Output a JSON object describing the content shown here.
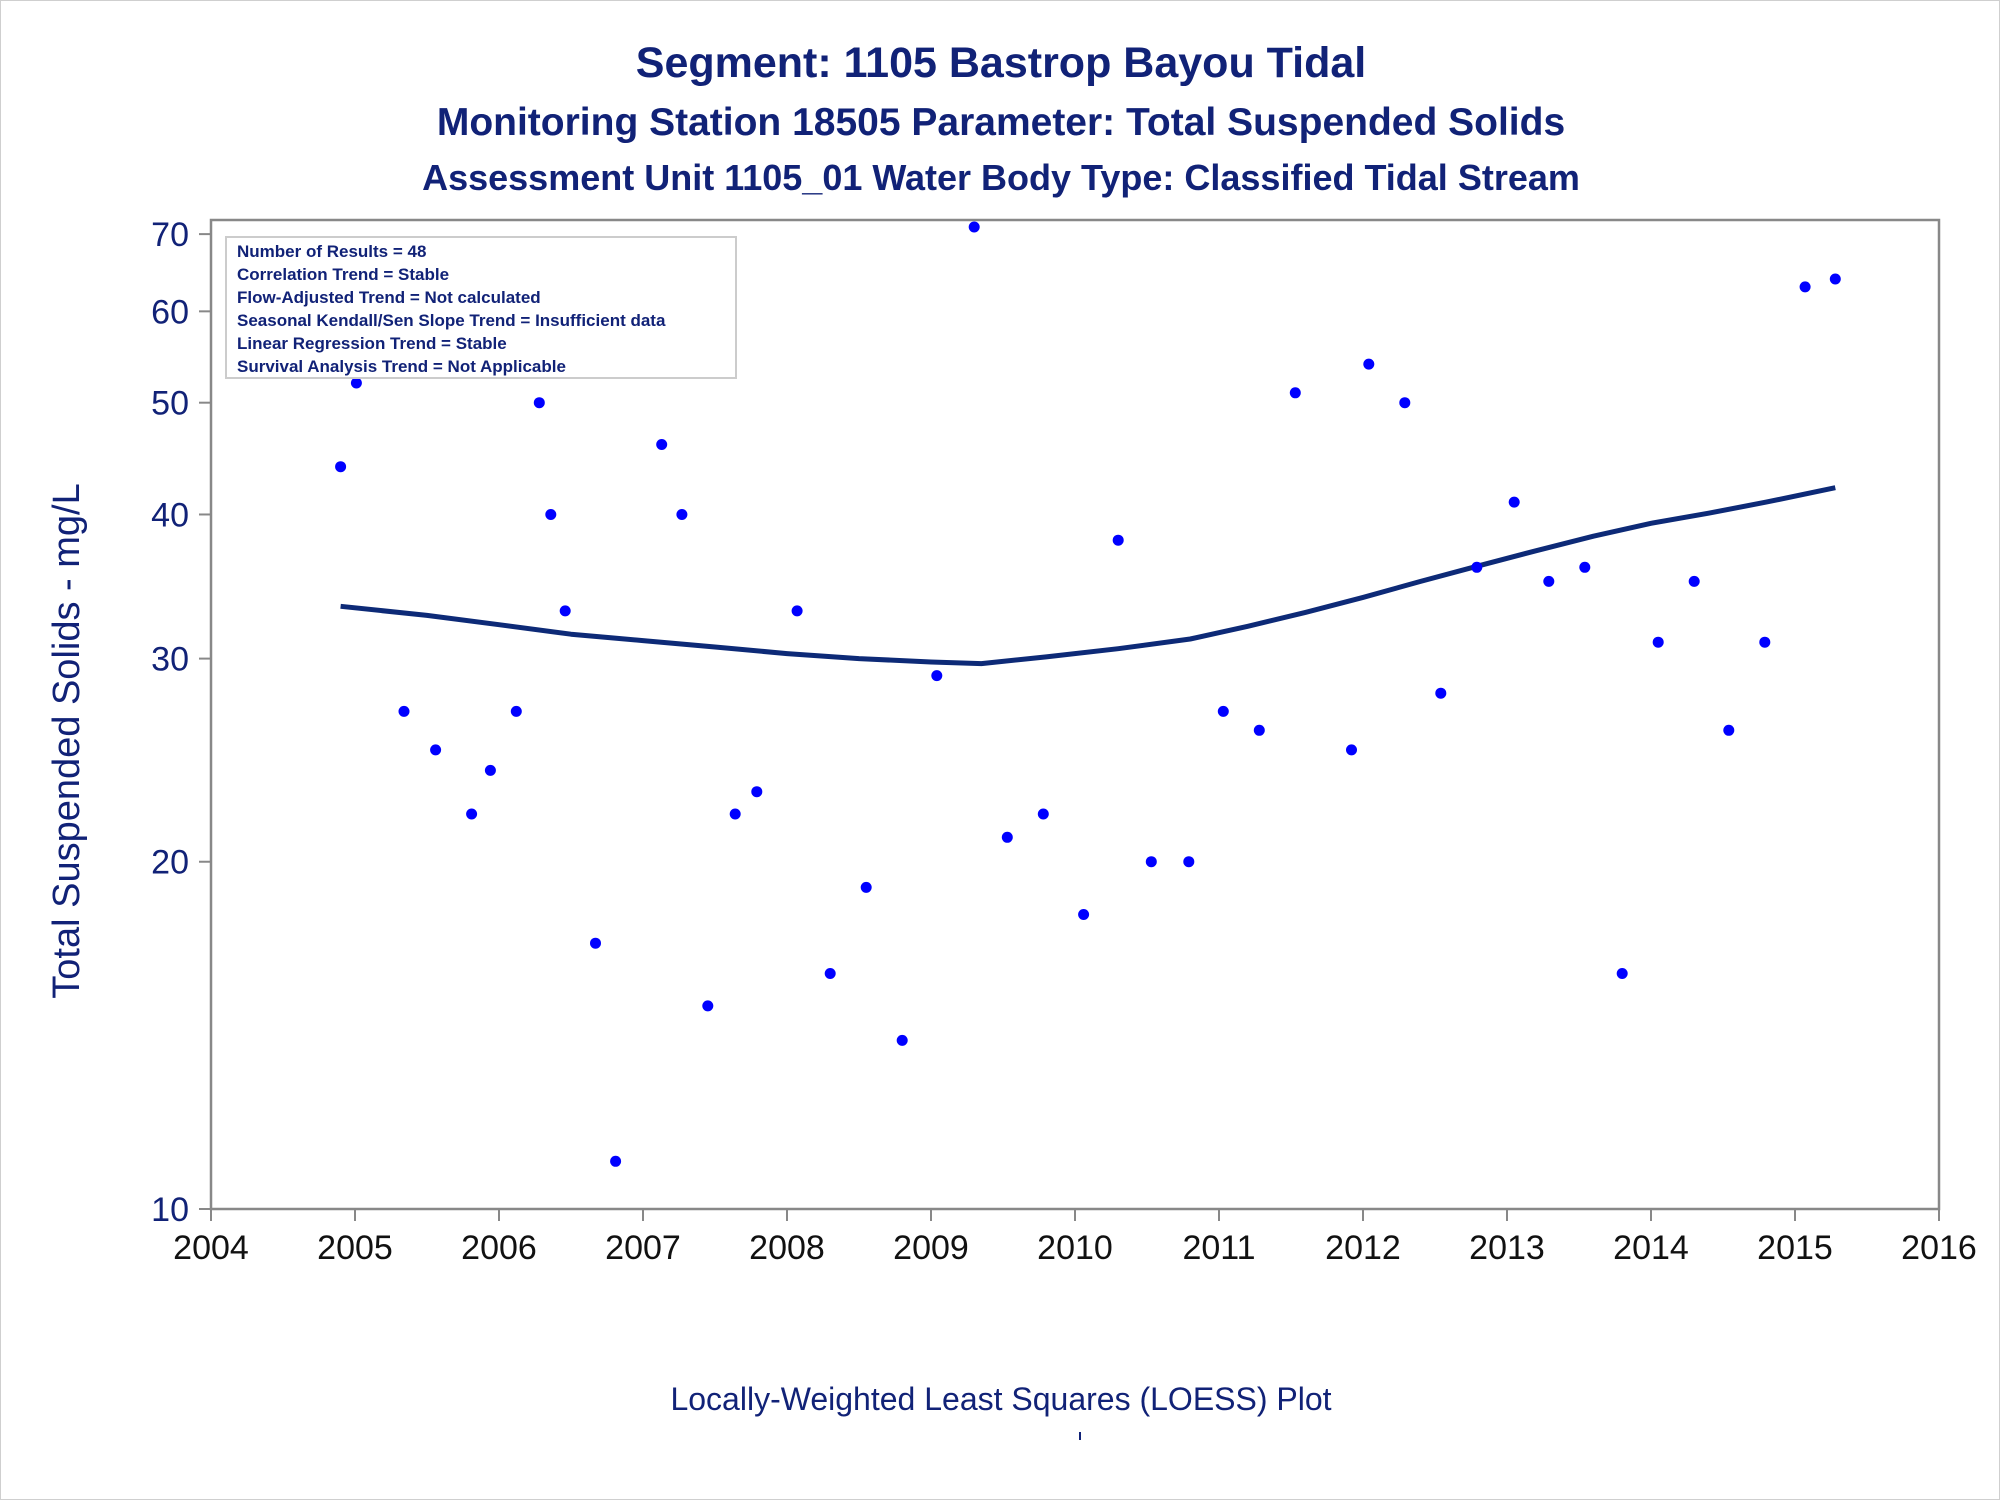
{
  "chart_data": {
    "type": "scatter",
    "title": "Segment: 1105  Bastrop Bayou Tidal",
    "subtitle": "Monitoring Station 18505 Parameter: Total Suspended Solids",
    "subtitle2": "Assessment Unit 1105_01   Water Body Type: Classified Tidal Stream",
    "xlabel": "",
    "ylabel": "Total Suspended Solids - mg/L",
    "footnote": "Locally-Weighted Least Squares (LOESS) Plot",
    "y_scale": "log",
    "xlim": [
      2004,
      2016
    ],
    "ylim": [
      10,
      72
    ],
    "x_ticks": [
      "2004",
      "2005",
      "2006",
      "2007",
      "2008",
      "2009",
      "2010",
      "2011",
      "2012",
      "2013",
      "2014",
      "2015",
      "2016"
    ],
    "y_ticks": [
      "10",
      "20",
      "30",
      "40",
      "50",
      "60",
      "70"
    ],
    "grid": false,
    "colors": {
      "points": "#0000ff",
      "trend": "#0d2a77",
      "text": "#112277",
      "axis": "#888888"
    },
    "stats_box": {
      "placement": "top-left",
      "lines": [
        "Number of Results = 48",
        "Correlation Trend = Stable",
        "Flow-Adjusted Trend = Not calculated",
        "Seasonal Kendall/Sen Slope Trend = Insufficient data",
        "Linear Regression Trend = Stable",
        "Survival Analysis Trend = Not Applicable"
      ]
    },
    "points": [
      {
        "x": 2004.9,
        "y": 44
      },
      {
        "x": 2005.01,
        "y": 52
      },
      {
        "x": 2005.19,
        "y": 53
      },
      {
        "x": 2005.34,
        "y": 27
      },
      {
        "x": 2005.56,
        "y": 25
      },
      {
        "x": 2005.81,
        "y": 22
      },
      {
        "x": 2005.94,
        "y": 24
      },
      {
        "x": 2006.12,
        "y": 27
      },
      {
        "x": 2006.28,
        "y": 50
      },
      {
        "x": 2006.36,
        "y": 40
      },
      {
        "x": 2006.46,
        "y": 33
      },
      {
        "x": 2006.67,
        "y": 17
      },
      {
        "x": 2006.81,
        "y": 11
      },
      {
        "x": 2007.13,
        "y": 46
      },
      {
        "x": 2007.27,
        "y": 40
      },
      {
        "x": 2007.45,
        "y": 15
      },
      {
        "x": 2007.64,
        "y": 22
      },
      {
        "x": 2007.79,
        "y": 23
      },
      {
        "x": 2008.07,
        "y": 33
      },
      {
        "x": 2008.3,
        "y": 16
      },
      {
        "x": 2008.55,
        "y": 19
      },
      {
        "x": 2008.8,
        "y": 14
      },
      {
        "x": 2009.04,
        "y": 29
      },
      {
        "x": 2009.3,
        "y": 71
      },
      {
        "x": 2009.53,
        "y": 21
      },
      {
        "x": 2009.78,
        "y": 22
      },
      {
        "x": 2010.06,
        "y": 18
      },
      {
        "x": 2010.3,
        "y": 38
      },
      {
        "x": 2010.53,
        "y": 20
      },
      {
        "x": 2010.79,
        "y": 20
      },
      {
        "x": 2011.03,
        "y": 27
      },
      {
        "x": 2011.28,
        "y": 26
      },
      {
        "x": 2011.53,
        "y": 51
      },
      {
        "x": 2011.92,
        "y": 25
      },
      {
        "x": 2012.04,
        "y": 54
      },
      {
        "x": 2012.29,
        "y": 50
      },
      {
        "x": 2012.54,
        "y": 28
      },
      {
        "x": 2012.79,
        "y": 36
      },
      {
        "x": 2013.05,
        "y": 41
      },
      {
        "x": 2013.29,
        "y": 35
      },
      {
        "x": 2013.54,
        "y": 36
      },
      {
        "x": 2013.8,
        "y": 16
      },
      {
        "x": 2014.05,
        "y": 31
      },
      {
        "x": 2014.3,
        "y": 35
      },
      {
        "x": 2014.54,
        "y": 26
      },
      {
        "x": 2014.79,
        "y": 31
      },
      {
        "x": 2015.07,
        "y": 63
      },
      {
        "x": 2015.28,
        "y": 64
      }
    ],
    "trend": {
      "name": "LOESS",
      "x": [
        2004.9,
        2005.5,
        2006.0,
        2006.5,
        2007.0,
        2007.5,
        2008.0,
        2008.5,
        2009.0,
        2009.35,
        2009.8,
        2010.3,
        2010.8,
        2011.2,
        2011.6,
        2012.0,
        2012.4,
        2012.8,
        2013.2,
        2013.6,
        2014.0,
        2014.4,
        2014.8,
        2015.28
      ],
      "y": [
        33.3,
        32.7,
        32.1,
        31.5,
        31.1,
        30.7,
        30.3,
        30.0,
        29.8,
        29.7,
        30.1,
        30.6,
        31.2,
        32.0,
        32.9,
        33.9,
        35.0,
        36.1,
        37.2,
        38.3,
        39.3,
        40.1,
        41.0,
        42.2
      ]
    }
  }
}
